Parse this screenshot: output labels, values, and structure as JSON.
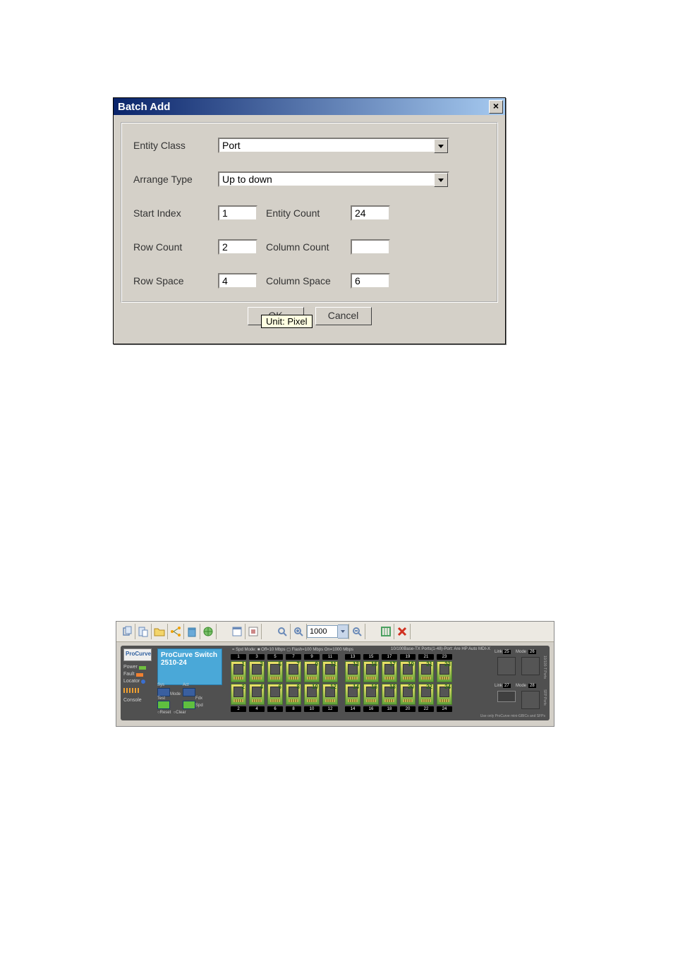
{
  "dialog": {
    "title": "Batch Add",
    "close_label": "×",
    "fields": {
      "entity_class": {
        "label": "Entity Class",
        "value": "Port"
      },
      "arrange_type": {
        "label": "Arrange Type",
        "value": "Up to down"
      },
      "start_index": {
        "label": "Start Index",
        "value": "1"
      },
      "entity_count": {
        "label": "Entity Count",
        "value": "24"
      },
      "row_count": {
        "label": "Row Count",
        "value": "2"
      },
      "column_count": {
        "label": "Column Count",
        "value": ""
      },
      "row_space": {
        "label": "Row Space",
        "value": "4"
      },
      "column_space": {
        "label": "Column Space",
        "value": "6"
      }
    },
    "ok_label": "OK",
    "cancel_label": "Cancel",
    "tooltip": "Unit: Pixel"
  },
  "switch": {
    "toolbar": {
      "zoom_value": "1000",
      "buttons": {
        "copy": "copy-icon",
        "paste": "paste-icon",
        "open": "open-folder-icon",
        "distribute": "distribute-icon",
        "recycle": "recycle-icon",
        "globe": "globe-icon",
        "props": "properties-icon",
        "grid": "panel-grid-icon",
        "search": "magnifier-icon",
        "zoom_in": "zoom-in-icon",
        "zoom_out": "zoom-out-icon",
        "fit": "fit-window-icon",
        "delete": "delete-x-icon"
      }
    },
    "faceplate": {
      "logo": "ProCurve",
      "product_name": "ProCurve Switch",
      "product_model": "2510-24",
      "leds": {
        "power": "Power",
        "fault": "Fault",
        "locator": "Locator"
      },
      "mode": {
        "sys": "Sys",
        "act": "Act",
        "fdx": "Fdx",
        "test": "Test",
        "spd": "Spd",
        "reset": "Reset",
        "clear": "Clear",
        "mode_word": "Mode"
      },
      "console": "Console",
      "legend": {
        "left": "= Spd Mode: ■ Off=10 Mbps ▢ Flash=100 Mbps     On=1000 Mbps",
        "right": "10/100Base-TX  Ports(1-48)-Port: Are HP Auto MDI-X"
      },
      "bankA": {
        "link_word": "Link",
        "mode_word": "Mode",
        "top_nums": [
          "1",
          "3",
          "5",
          "7",
          "9",
          "11"
        ],
        "ports_row1": [
          "1",
          "3",
          "5",
          "7",
          "9",
          "11"
        ],
        "ports_row2": [
          "2",
          "4",
          "6",
          "8",
          "10",
          "12"
        ],
        "bot_nums": [
          "2",
          "4",
          "6",
          "8",
          "10",
          "12"
        ]
      },
      "bankB": {
        "link_word": "Link",
        "mode_word": "Mode",
        "top_nums": [
          "13",
          "15",
          "17",
          "19",
          "21",
          "23"
        ],
        "ports_row1": [
          "13",
          "15",
          "17",
          "19",
          "21",
          "23"
        ],
        "ports_row2": [
          "14",
          "16",
          "18",
          "20",
          "22",
          "24"
        ],
        "bot_nums": [
          "14",
          "16",
          "18",
          "20",
          "22",
          "24"
        ]
      },
      "dual": {
        "link": "Link",
        "mode": "Mode",
        "p25": "25",
        "p26": "26",
        "p27": "27",
        "p28": "28",
        "side1": "10/100-T Ports",
        "side2": "SFP Ports"
      },
      "footnote": "Use only ProCurve mini-GBICs and SFPs"
    }
  }
}
